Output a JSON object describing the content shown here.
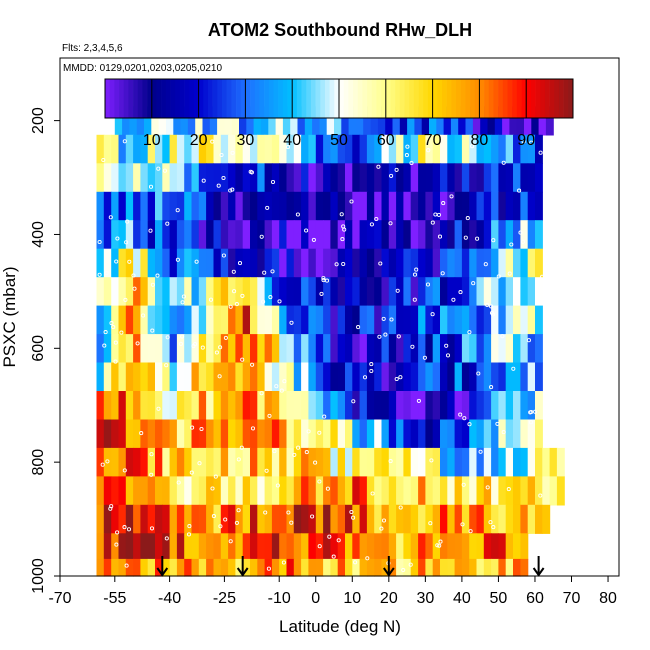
{
  "chart_data": {
    "type": "heatmap",
    "title": "ATOM2 Southbound RHw_DLH",
    "flights_note": "Flts: 2,3,4,5,6",
    "dates_note": "MMDD: 0129,0201,0203,0205,0210",
    "xlabel": "Latitude (deg N)",
    "ylabel": "PSXC (mbar)",
    "xlim": [
      -70,
      83
    ],
    "ylim": [
      1000,
      90
    ],
    "y_reversed": true,
    "x_ticks": [
      "-70",
      "-55",
      "-40",
      "-25",
      "-10",
      "0",
      "10",
      "20",
      "30",
      "40",
      "50",
      "60",
      "70",
      "80"
    ],
    "x_tick_values": [
      -70,
      -55,
      -40,
      -25,
      -10,
      0,
      10,
      20,
      30,
      40,
      50,
      60,
      70,
      80
    ],
    "y_ticks": [
      "200",
      "400",
      "600",
      "800",
      "1000"
    ],
    "y_tick_values": [
      200,
      400,
      600,
      800,
      1000
    ],
    "colorbar": {
      "ticks": [
        "10",
        "20",
        "30",
        "40",
        "50",
        "60",
        "70",
        "80",
        "90"
      ],
      "tick_values": [
        10,
        20,
        30,
        40,
        50,
        60,
        70,
        80,
        90
      ],
      "range": [
        0,
        100
      ],
      "colors": [
        "#7f1fff",
        "#00008b",
        "#0000cd",
        "#1e6fff",
        "#00bfff",
        "#ffffff",
        "#ffff8c",
        "#ffd700",
        "#ff8c00",
        "#ff0000",
        "#8b1a1a"
      ]
    },
    "arrows_at_latitude": [
      -42,
      -20,
      20,
      61
    ],
    "pressure_levels": [
      200,
      250,
      300,
      350,
      400,
      450,
      500,
      550,
      600,
      650,
      700,
      750,
      800,
      850,
      900,
      950,
      990
    ],
    "latitude_grid_step": 2,
    "latitude_coverage": [
      -60,
      62
    ],
    "rh_field_nodes": {
      "latitude": [
        -60,
        -50,
        -40,
        -30,
        -20,
        -10,
        0,
        10,
        20,
        30,
        40,
        50,
        60
      ],
      "rows": [
        {
          "p": 200,
          "rh": [
            40,
            35,
            45,
            40,
            40,
            45,
            38,
            35,
            30,
            25,
            20,
            10,
            5
          ]
        },
        {
          "p": 250,
          "rh": [
            55,
            40,
            55,
            58,
            62,
            50,
            30,
            28,
            40,
            60,
            50,
            38,
            30
          ]
        },
        {
          "p": 300,
          "rh": [
            45,
            60,
            40,
            30,
            15,
            25,
            8,
            5,
            15,
            10,
            20,
            25,
            20
          ]
        },
        {
          "p": 350,
          "rh": [
            25,
            35,
            30,
            18,
            10,
            15,
            5,
            3,
            10,
            8,
            12,
            20,
            25
          ]
        },
        {
          "p": 400,
          "rh": [
            30,
            40,
            20,
            15,
            12,
            10,
            3,
            2,
            8,
            10,
            15,
            30,
            40
          ]
        },
        {
          "p": 450,
          "rh": [
            45,
            60,
            35,
            20,
            15,
            10,
            5,
            5,
            12,
            15,
            20,
            40,
            55
          ]
        },
        {
          "p": 500,
          "rh": [
            40,
            75,
            30,
            55,
            70,
            30,
            15,
            10,
            15,
            20,
            30,
            45,
            50
          ]
        },
        {
          "p": 550,
          "rh": [
            35,
            85,
            30,
            60,
            90,
            45,
            20,
            15,
            20,
            25,
            35,
            40,
            45
          ]
        },
        {
          "p": 600,
          "rh": [
            30,
            80,
            35,
            65,
            85,
            60,
            20,
            10,
            15,
            20,
            30,
            40,
            40
          ]
        },
        {
          "p": 650,
          "rh": [
            45,
            70,
            50,
            75,
            80,
            60,
            30,
            15,
            10,
            20,
            25,
            35,
            40
          ]
        },
        {
          "p": 700,
          "rh": [
            85,
            80,
            60,
            70,
            75,
            70,
            50,
            20,
            15,
            5,
            10,
            30,
            45
          ]
        },
        {
          "p": 750,
          "rh": [
            90,
            85,
            70,
            75,
            80,
            75,
            65,
            45,
            35,
            20,
            25,
            40,
            50
          ]
        },
        {
          "p": 800,
          "rh": [
            88,
            80,
            70,
            65,
            70,
            70,
            68,
            55,
            60,
            55,
            40,
            45,
            55
          ]
        },
        {
          "p": 850,
          "rh": [
            80,
            75,
            68,
            60,
            62,
            70,
            75,
            80,
            70,
            68,
            60,
            65,
            60
          ]
        },
        {
          "p": 900,
          "rh": [
            92,
            88,
            80,
            75,
            80,
            85,
            90,
            82,
            72,
            75,
            78,
            75,
            70
          ]
        },
        {
          "p": 950,
          "rh": [
            90,
            92,
            85,
            80,
            85,
            88,
            85,
            80,
            75,
            78,
            80,
            82,
            78
          ]
        },
        {
          "p": 990,
          "rh": [
            72,
            75,
            74,
            72,
            74,
            76,
            78,
            72,
            70,
            72,
            74,
            72,
            70
          ]
        }
      ]
    }
  }
}
